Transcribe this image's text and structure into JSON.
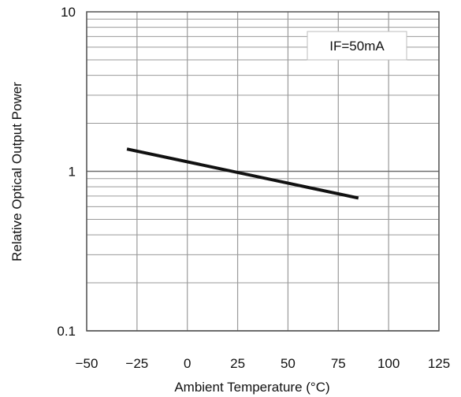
{
  "chart_data": {
    "type": "line",
    "xlabel": "Ambient Temperature  (°C)",
    "ylabel": "Relative Optical Output Power",
    "xlim": [
      -50,
      125
    ],
    "ylim": [
      0.1,
      10
    ],
    "y_scale": "log",
    "x_ticks": [
      -50,
      -25,
      0,
      25,
      50,
      75,
      100,
      125
    ],
    "x_tick_labels": [
      "−50",
      "−25",
      "0",
      "25",
      "50",
      "75",
      "100",
      "125"
    ],
    "y_ticks": [
      0.1,
      1,
      10
    ],
    "y_tick_labels": [
      "0.1",
      "1",
      "10"
    ],
    "grid": true,
    "legend_position": "top-right",
    "annotation": "IF=50mA",
    "series": [
      {
        "x": [
          -30,
          85
        ],
        "y": [
          1.38,
          0.68
        ]
      }
    ],
    "colors": {
      "line": "#111111",
      "grid": "#9a9a9a",
      "axis": "#555555"
    }
  }
}
